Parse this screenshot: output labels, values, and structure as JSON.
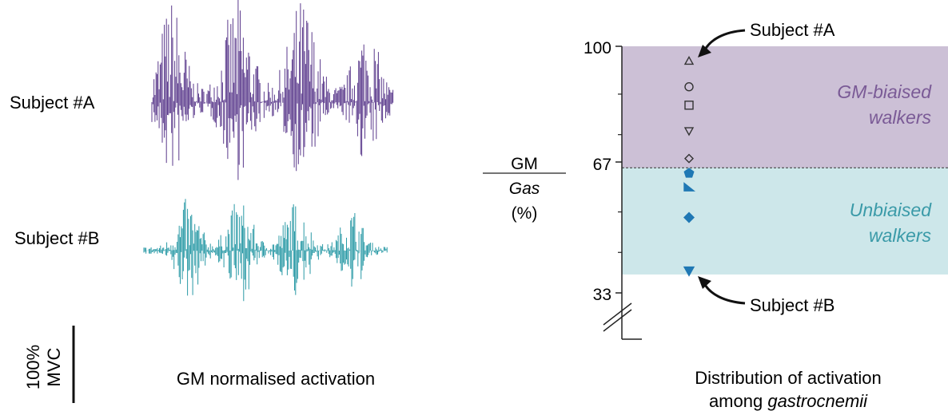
{
  "left_panel": {
    "subject_a_label": "Subject #A",
    "subject_b_label": "Subject #B",
    "scale_label_top": "100%",
    "scale_label_bottom": "MVC",
    "caption": "GM normalised activation",
    "color_a": "#5b3a8c",
    "color_b": "#2a9aa6"
  },
  "chart_data": {
    "type": "scatter",
    "ylabel_num": "GM",
    "ylabel_den": "Gas",
    "ylabel_unit": "(%)",
    "yticks": [
      100,
      67,
      33
    ],
    "ylim": [
      33,
      100
    ],
    "threshold": 67,
    "regions": [
      {
        "label_line1": "GM-biaised",
        "label_line2": "walkers",
        "from": 67,
        "to": 100,
        "color": "#ccc0d6",
        "text_color": "#7a5a96"
      },
      {
        "label_line1": "Unbiaised",
        "label_line2": "walkers",
        "from": 38,
        "to": 67,
        "color": "#cde7ea",
        "text_color": "#3a9aa8"
      }
    ],
    "points": [
      {
        "value": 96,
        "marker": "triangle-up",
        "filled": false
      },
      {
        "value": 89,
        "marker": "circle",
        "filled": false
      },
      {
        "value": 84,
        "marker": "square",
        "filled": false
      },
      {
        "value": 77,
        "marker": "triangle-down",
        "filled": false
      },
      {
        "value": 69.5,
        "marker": "diamond",
        "filled": false
      },
      {
        "value": 65.5,
        "marker": "pentagon",
        "filled": true
      },
      {
        "value": 61.5,
        "marker": "triangle-right",
        "filled": true
      },
      {
        "value": 53.5,
        "marker": "diamond",
        "filled": true
      },
      {
        "value": 39,
        "marker": "triangle-down",
        "filled": true
      }
    ],
    "annotations": [
      {
        "text": "Subject #A"
      },
      {
        "text": "Subject #B"
      }
    ],
    "caption_line1": "Distribution of activation",
    "caption_line2_prefix": "among ",
    "caption_line2_italic": "gastrocnemii",
    "marker_color": "#1f78b4"
  }
}
